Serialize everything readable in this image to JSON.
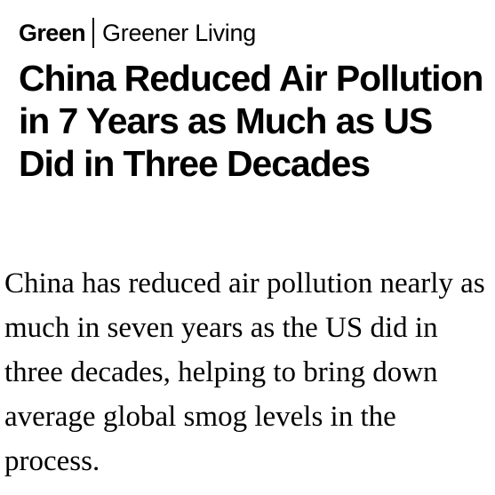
{
  "kicker": {
    "section": "Green",
    "subsection": "Greener Living"
  },
  "headline": "China Reduced Air Pollution in 7 Years as Much as US Did in Three Decades",
  "dek": "China has reduced air pollution nearly as much in seven years as the US did in three decades, helping to bring down average global smog levels in the process."
}
